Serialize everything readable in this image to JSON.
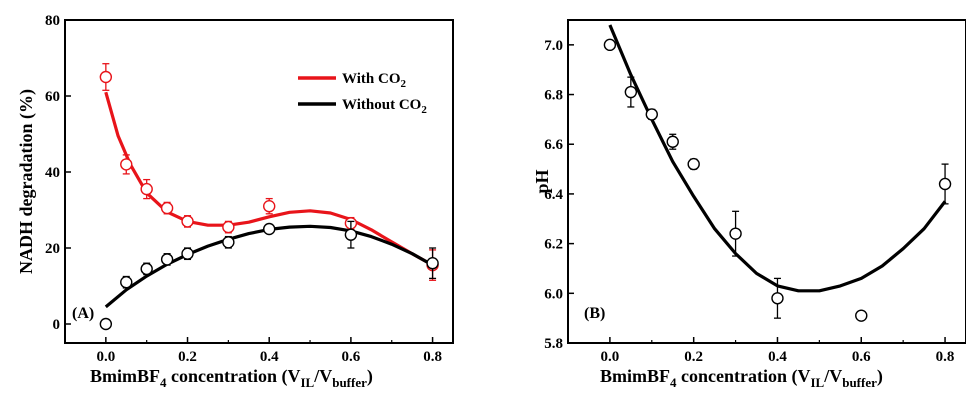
{
  "chart_data": [
    {
      "type": "scatter",
      "panel_label": "(A)",
      "xlabel": {
        "main": "BmimBF",
        "sub1": "4",
        "mid": " concentration (V",
        "sub2": "IL",
        "mid2": "/V",
        "sub3": "buffer",
        "end": ")"
      },
      "ylabel": "NADH degradation (%)",
      "xlim": [
        -0.1,
        0.85
      ],
      "ylim": [
        -5,
        80
      ],
      "xticks": [
        "0.0",
        "0.2",
        "0.4",
        "0.6",
        "0.8"
      ],
      "xtick_values": [
        0,
        0.2,
        0.4,
        0.6,
        0.8
      ],
      "yticks": [
        "0",
        "20",
        "40",
        "60",
        "80"
      ],
      "ytick_values": [
        0,
        20,
        40,
        60,
        80
      ],
      "series": [
        {
          "name": "With CO2",
          "legend_main": "With CO",
          "legend_sub": "2",
          "color": "#e8141a",
          "x": [
            0,
            0.05,
            0.1,
            0.15,
            0.2,
            0.3,
            0.4,
            0.6,
            0.8
          ],
          "y": [
            65,
            42,
            35.5,
            30.5,
            27,
            25.5,
            31,
            26.5,
            15.5
          ],
          "err": [
            3.5,
            2.5,
            2.5,
            1.5,
            1.5,
            1.5,
            2,
            1.5,
            4
          ],
          "fit_x": [
            0,
            0.03,
            0.06,
            0.1,
            0.15,
            0.2,
            0.25,
            0.3,
            0.35,
            0.4,
            0.45,
            0.5,
            0.55,
            0.6,
            0.65,
            0.7,
            0.75,
            0.8
          ],
          "fit_y": [
            61,
            49.5,
            42,
            34.5,
            29.5,
            27,
            26,
            26,
            26.8,
            28.2,
            29.4,
            29.8,
            29.2,
            27.5,
            24.8,
            21.6,
            18.5,
            15.5
          ]
        },
        {
          "name": "Without CO2",
          "legend_main": "Without CO",
          "legend_sub": "2",
          "color": "#000000",
          "x": [
            0,
            0.05,
            0.1,
            0.15,
            0.2,
            0.3,
            0.4,
            0.6,
            0.8
          ],
          "y": [
            0,
            11,
            14.5,
            17,
            18.5,
            21.5,
            25,
            23.5,
            16
          ],
          "err": [
            0.5,
            1.5,
            1.5,
            1.5,
            1.5,
            1.5,
            1,
            3.5,
            4
          ],
          "fit_x": [
            0,
            0.05,
            0.1,
            0.15,
            0.2,
            0.25,
            0.3,
            0.35,
            0.4,
            0.45,
            0.5,
            0.55,
            0.6,
            0.65,
            0.7,
            0.75,
            0.8
          ],
          "fit_y": [
            4.5,
            9,
            12.6,
            15.7,
            18.3,
            20.5,
            22.3,
            23.8,
            24.9,
            25.5,
            25.7,
            25.4,
            24.5,
            23,
            21,
            18.5,
            15.5
          ]
        }
      ]
    },
    {
      "type": "scatter",
      "panel_label": "(B)",
      "xlabel": {
        "main": "BmimBF",
        "sub1": "4",
        "mid": " concentration (V",
        "sub2": "IL",
        "mid2": "/V",
        "sub3": "buffer",
        "end": ")"
      },
      "ylabel": "pH",
      "xlim": [
        -0.1,
        0.85
      ],
      "ylim": [
        5.8,
        7.1
      ],
      "xticks": [
        "0.0",
        "0.2",
        "0.4",
        "0.6",
        "0.8"
      ],
      "xtick_values": [
        0,
        0.2,
        0.4,
        0.6,
        0.8
      ],
      "yticks": [
        "5.8",
        "6.0",
        "6.2",
        "6.4",
        "6.6",
        "6.8",
        "7.0"
      ],
      "ytick_values": [
        5.8,
        6.0,
        6.2,
        6.4,
        6.6,
        6.8,
        7.0
      ],
      "series": [
        {
          "color": "#000000",
          "x": [
            0,
            0.05,
            0.1,
            0.15,
            0.2,
            0.3,
            0.4,
            0.6,
            0.8
          ],
          "y": [
            7.0,
            6.81,
            6.72,
            6.61,
            6.52,
            6.24,
            5.98,
            5.91,
            6.44
          ],
          "err": [
            0.01,
            0.06,
            0.02,
            0.03,
            0.02,
            0.09,
            0.08,
            0.01,
            0.08
          ],
          "fit_x": [
            0,
            0.05,
            0.1,
            0.15,
            0.2,
            0.25,
            0.3,
            0.35,
            0.4,
            0.45,
            0.5,
            0.55,
            0.6,
            0.65,
            0.7,
            0.75,
            0.8
          ],
          "fit_y": [
            7.08,
            6.88,
            6.7,
            6.53,
            6.39,
            6.26,
            6.16,
            6.08,
            6.03,
            6.01,
            6.01,
            6.03,
            6.06,
            6.11,
            6.18,
            6.26,
            6.37
          ]
        }
      ]
    }
  ]
}
